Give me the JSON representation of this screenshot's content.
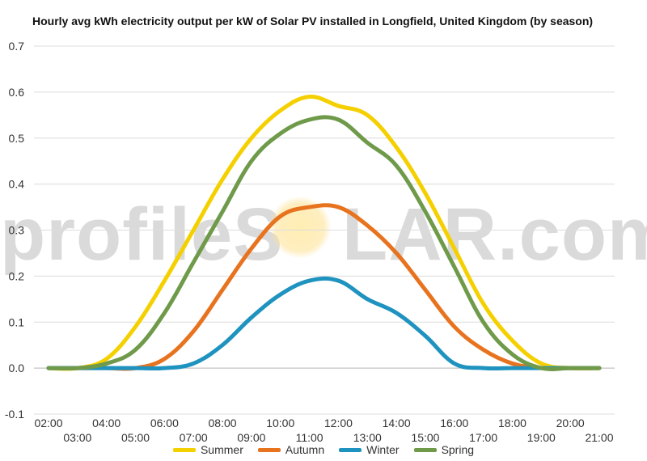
{
  "chart_data": {
    "type": "line",
    "title": "Hourly avg kWh electricity output per kW of Solar PV installed in Longfield, United Kingdom (by season)",
    "xlabel": "",
    "ylabel": "",
    "ylim": [
      -0.1,
      0.7
    ],
    "yticks": [
      "0.7",
      "0.6",
      "0.5",
      "0.4",
      "0.3",
      "0.2",
      "0.1",
      "0.0",
      "-0.1"
    ],
    "categories": [
      "02:00",
      "03:00",
      "04:00",
      "05:00",
      "06:00",
      "07:00",
      "08:00",
      "09:00",
      "10:00",
      "11:00",
      "12:00",
      "13:00",
      "14:00",
      "15:00",
      "16:00",
      "17:00",
      "18:00",
      "19:00",
      "20:00",
      "21:00"
    ],
    "grid": true,
    "legend_position": "bottom",
    "series": [
      {
        "name": "Summer",
        "color": "#f5d000",
        "values": [
          0.0,
          0.0,
          0.02,
          0.09,
          0.19,
          0.3,
          0.41,
          0.5,
          0.56,
          0.59,
          0.57,
          0.55,
          0.48,
          0.38,
          0.26,
          0.14,
          0.06,
          0.01,
          0.0,
          0.0
        ]
      },
      {
        "name": "Autumn",
        "color": "#e8731f",
        "values": [
          0.0,
          0.0,
          0.0,
          0.0,
          0.02,
          0.08,
          0.17,
          0.26,
          0.33,
          0.35,
          0.35,
          0.31,
          0.25,
          0.17,
          0.09,
          0.04,
          0.01,
          0.0,
          0.0,
          0.0
        ]
      },
      {
        "name": "Winter",
        "color": "#1f93bf",
        "values": [
          0.0,
          0.0,
          0.0,
          0.0,
          0.0,
          0.01,
          0.05,
          0.11,
          0.16,
          0.19,
          0.19,
          0.15,
          0.12,
          0.07,
          0.01,
          0.0,
          0.0,
          0.0,
          0.0,
          0.0
        ]
      },
      {
        "name": "Spring",
        "color": "#6f9a4a",
        "values": [
          0.0,
          0.0,
          0.01,
          0.04,
          0.12,
          0.23,
          0.34,
          0.45,
          0.51,
          0.54,
          0.54,
          0.49,
          0.44,
          0.34,
          0.22,
          0.1,
          0.03,
          0.0,
          0.0,
          0.0
        ]
      }
    ]
  },
  "watermark": {
    "text": "profileSOLAR.com"
  }
}
